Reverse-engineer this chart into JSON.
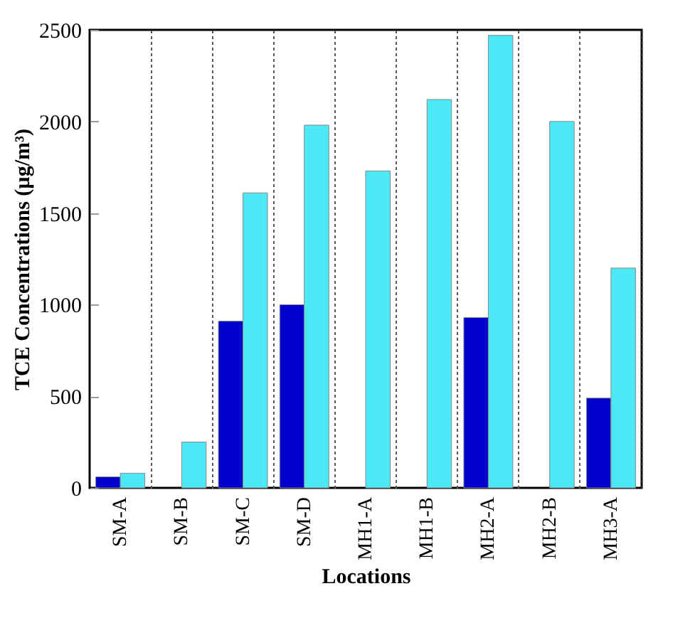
{
  "chart_data": {
    "type": "bar",
    "xlabel": "Locations",
    "ylabel": "TCE Concentrations (µg/m³)",
    "categories": [
      "SM-A",
      "SM-B",
      "SM-C",
      "SM-D",
      "MH1-A",
      "MH1-B",
      "MH2-A",
      "MH2-B",
      "MH3-A"
    ],
    "series": [
      {
        "color": "#0000cc",
        "values": [
          60,
          null,
          910,
          1000,
          null,
          null,
          930,
          null,
          490
        ]
      },
      {
        "color": "#4de8f5",
        "values": [
          80,
          250,
          1610,
          1980,
          1730,
          2120,
          2470,
          2000,
          1200
        ]
      }
    ],
    "ylim": [
      0,
      2500
    ],
    "yticks": [
      0,
      500,
      1000,
      1500,
      2000,
      2500
    ],
    "grid": "x"
  }
}
